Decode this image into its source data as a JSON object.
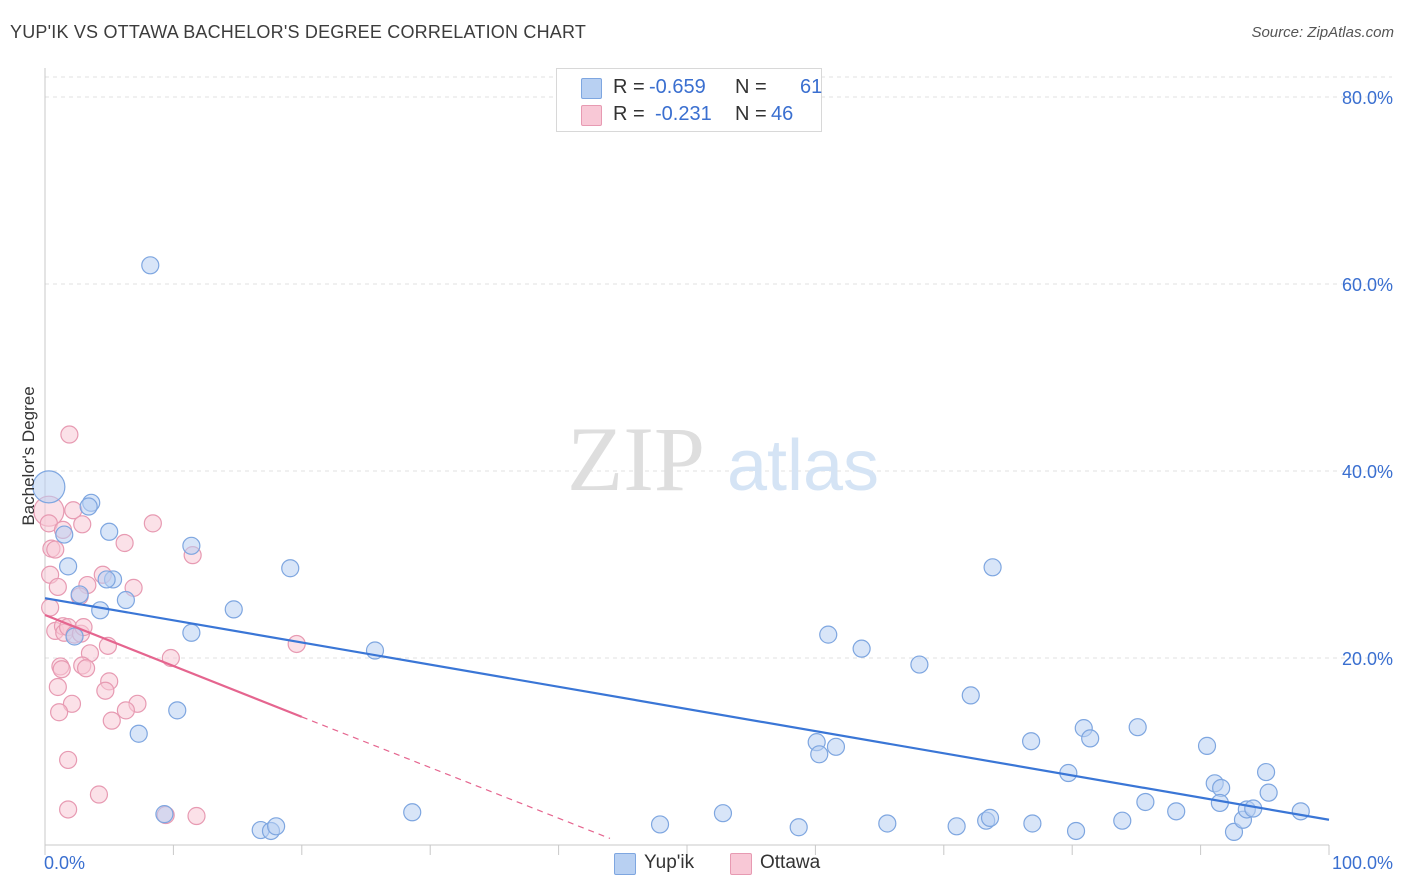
{
  "title": "YUP'IK VS OTTAWA BACHELOR'S DEGREE CORRELATION CHART",
  "source": "Source: ZipAtlas.com",
  "watermark": {
    "zip": "ZIP",
    "atlas": "atlas"
  },
  "legend": {
    "rows": [
      {
        "r_label": "R =",
        "r_value": "-0.659",
        "n_label": "N =",
        "n_value": "61",
        "color": "#b8d0f2",
        "border": "#7ea6e0"
      },
      {
        "r_label": "R =",
        "r_value": " -0.231",
        "n_label": "N =",
        "n_value": "46",
        "color": "#f8c8d6",
        "border": "#e79ab2"
      }
    ]
  },
  "bottom_legend": {
    "yupik": "Yup'ik",
    "ottawa": "Ottawa"
  },
  "chart_data": {
    "type": "scatter",
    "title": "YUP'IK VS OTTAWA BACHELOR'S DEGREE CORRELATION CHART",
    "xlabel": "",
    "ylabel": "Bachelor's Degree",
    "xlim": [
      0,
      100
    ],
    "ylim": [
      0,
      80
    ],
    "x_tick_labels": [
      "0.0%",
      "100.0%"
    ],
    "y_ticks": [
      20,
      40,
      60,
      80
    ],
    "y_tick_labels": [
      "20.0%",
      "40.0%",
      "60.0%",
      "80.0%"
    ],
    "grid": true,
    "colors": {
      "yupik": "#3a76d6",
      "yupik_fill": "#b8d0f2",
      "ottawa": "#e5658f",
      "ottawa_fill": "#f8c8d6"
    },
    "series": [
      {
        "name": "Yup'ik",
        "points": [
          [
            8.2,
            62.0
          ],
          [
            0.3,
            38.3
          ],
          [
            1.5,
            33.2
          ],
          [
            3.6,
            36.6
          ],
          [
            3.4,
            36.2
          ],
          [
            5.0,
            33.5
          ],
          [
            1.8,
            29.8
          ],
          [
            5.3,
            28.4
          ],
          [
            4.8,
            28.4
          ],
          [
            2.7,
            26.8
          ],
          [
            6.3,
            26.2
          ],
          [
            4.3,
            25.1
          ],
          [
            11.4,
            22.7
          ],
          [
            2.3,
            22.3
          ],
          [
            11.4,
            32.0
          ],
          [
            19.1,
            29.6
          ],
          [
            14.7,
            25.2
          ],
          [
            25.7,
            20.8
          ],
          [
            10.3,
            14.4
          ],
          [
            7.3,
            11.9
          ],
          [
            9.3,
            3.3
          ],
          [
            16.8,
            1.6
          ],
          [
            17.6,
            1.5
          ],
          [
            18.0,
            2.0
          ],
          [
            28.6,
            3.5
          ],
          [
            47.9,
            2.2
          ],
          [
            52.8,
            3.4
          ],
          [
            58.7,
            1.9
          ],
          [
            60.1,
            11.0
          ],
          [
            60.3,
            9.7
          ],
          [
            61.6,
            10.5
          ],
          [
            61.0,
            22.5
          ],
          [
            63.6,
            21.0
          ],
          [
            65.6,
            2.3
          ],
          [
            68.1,
            19.3
          ],
          [
            72.1,
            16.0
          ],
          [
            73.3,
            2.6
          ],
          [
            73.6,
            2.9
          ],
          [
            73.8,
            29.7
          ],
          [
            76.9,
            2.3
          ],
          [
            76.8,
            11.1
          ],
          [
            79.7,
            7.7
          ],
          [
            80.3,
            1.5
          ],
          [
            80.9,
            12.5
          ],
          [
            81.4,
            11.4
          ],
          [
            83.9,
            2.6
          ],
          [
            85.1,
            12.6
          ],
          [
            85.7,
            4.6
          ],
          [
            88.1,
            3.6
          ],
          [
            90.5,
            10.6
          ],
          [
            91.1,
            6.6
          ],
          [
            91.6,
            6.1
          ],
          [
            91.5,
            4.5
          ],
          [
            92.6,
            1.4
          ],
          [
            93.3,
            2.7
          ],
          [
            93.6,
            3.8
          ],
          [
            94.1,
            3.9
          ],
          [
            95.1,
            7.8
          ],
          [
            95.3,
            5.6
          ],
          [
            97.8,
            3.6
          ],
          [
            71.0,
            2.0
          ]
        ],
        "trend": {
          "x1": 0,
          "y1": 26.4,
          "x2": 100,
          "y2": 2.7
        }
      },
      {
        "name": "Ottawa",
        "points": [
          [
            0.3,
            35.7
          ],
          [
            1.9,
            43.9
          ],
          [
            0.3,
            34.4
          ],
          [
            1.4,
            33.7
          ],
          [
            2.2,
            35.8
          ],
          [
            2.9,
            34.3
          ],
          [
            6.2,
            32.3
          ],
          [
            8.4,
            34.4
          ],
          [
            11.5,
            31.0
          ],
          [
            0.5,
            31.7
          ],
          [
            0.8,
            31.6
          ],
          [
            0.4,
            28.9
          ],
          [
            1.0,
            27.6
          ],
          [
            3.3,
            27.8
          ],
          [
            4.5,
            28.9
          ],
          [
            6.9,
            27.5
          ],
          [
            2.7,
            26.6
          ],
          [
            0.4,
            25.4
          ],
          [
            0.8,
            22.9
          ],
          [
            1.4,
            23.4
          ],
          [
            1.5,
            22.7
          ],
          [
            1.8,
            23.3
          ],
          [
            2.3,
            22.5
          ],
          [
            2.8,
            22.6
          ],
          [
            3.0,
            23.3
          ],
          [
            4.9,
            21.3
          ],
          [
            3.5,
            20.5
          ],
          [
            9.8,
            20.0
          ],
          [
            19.6,
            21.5
          ],
          [
            1.2,
            19.1
          ],
          [
            2.9,
            19.2
          ],
          [
            3.2,
            18.9
          ],
          [
            1.3,
            18.8
          ],
          [
            5.0,
            17.5
          ],
          [
            1.0,
            16.9
          ],
          [
            4.7,
            16.5
          ],
          [
            2.1,
            15.1
          ],
          [
            7.2,
            15.1
          ],
          [
            1.1,
            14.2
          ],
          [
            6.3,
            14.4
          ],
          [
            5.2,
            13.3
          ],
          [
            1.8,
            9.1
          ],
          [
            1.8,
            3.8
          ],
          [
            4.2,
            5.4
          ],
          [
            9.4,
            3.2
          ],
          [
            11.8,
            3.1
          ]
        ],
        "trend": {
          "x1": 0,
          "y1": 24.6,
          "x2": 20,
          "y2": 13.7
        },
        "trend_extension": {
          "x1": 20,
          "y1": 13.7,
          "x2": 44,
          "y2": 0.7
        }
      }
    ]
  }
}
